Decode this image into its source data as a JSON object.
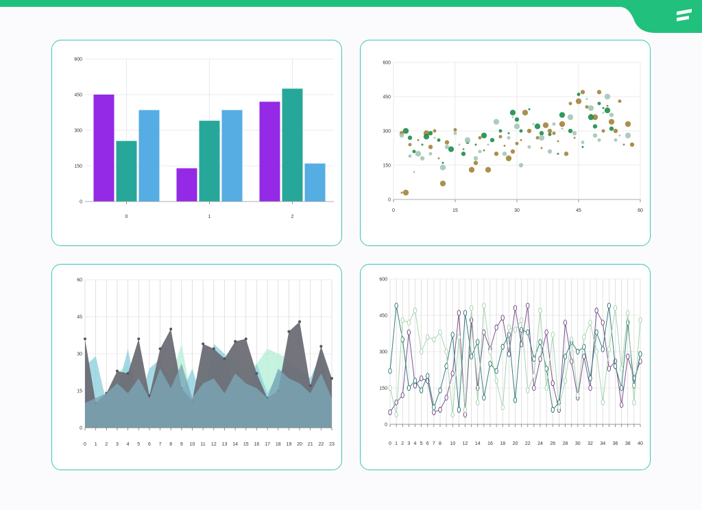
{
  "theme": {
    "accent": "#21c07d",
    "card_border": "#3ec5b0",
    "logo_fill": "#ffffff"
  },
  "header": {
    "logo_icon": "brand-stripes-icon"
  },
  "chart_data": [
    {
      "type": "bar",
      "categories": [
        "0",
        "1",
        "2"
      ],
      "series": [
        {
          "values": [
            450,
            140,
            420
          ],
          "color": "#9429e6"
        },
        {
          "values": [
            255,
            340,
            475
          ],
          "color": "#27a799"
        },
        {
          "values": [
            385,
            385,
            160
          ],
          "color": "#56ade3"
        }
      ],
      "series_layout": "per-category: purple, teal, blue",
      "bar_heights_by_category": [
        [
          450,
          140,
          420
        ],
        [
          255,
          340,
          475
        ],
        [
          385,
          385,
          160
        ]
      ],
      "ylim": [
        0,
        600
      ],
      "yticks": [
        0,
        150,
        300,
        450,
        600
      ],
      "xlabel": "",
      "ylabel": "",
      "title": "",
      "grid": true
    },
    {
      "type": "scatter",
      "xlim": [
        0,
        60
      ],
      "ylim": [
        0,
        600
      ],
      "xticks": [
        0,
        15,
        30,
        45,
        60
      ],
      "yticks": [
        0,
        150,
        300,
        450,
        600
      ],
      "grid": true,
      "series": [
        {
          "color": "#a2843a",
          "points": [
            [
              2,
              30
            ],
            [
              3,
              30
            ],
            [
              2,
              290
            ],
            [
              4,
              240
            ],
            [
              6,
              260
            ],
            [
              8,
              290
            ],
            [
              9,
              230
            ],
            [
              10,
              300
            ],
            [
              11,
              180
            ],
            [
              12,
              70
            ],
            [
              13,
              250
            ],
            [
              15,
              305
            ],
            [
              17,
              220
            ],
            [
              19,
              130
            ],
            [
              20,
              160
            ],
            [
              21,
              270
            ],
            [
              22,
              215
            ],
            [
              23,
              130
            ],
            [
              25,
              200
            ],
            [
              26,
              275
            ],
            [
              27,
              235
            ],
            [
              28,
              180
            ],
            [
              29,
              210
            ],
            [
              30,
              245
            ],
            [
              31,
              260
            ],
            [
              32,
              380
            ],
            [
              33,
              300
            ],
            [
              35,
              270
            ],
            [
              36,
              225
            ],
            [
              37,
              325
            ],
            [
              38,
              300
            ],
            [
              39,
              290
            ],
            [
              40,
              255
            ],
            [
              41,
              330
            ],
            [
              42,
              200
            ],
            [
              43,
              420
            ],
            [
              44,
              270
            ],
            [
              45,
              430
            ],
            [
              46,
              470
            ],
            [
              47,
              405
            ],
            [
              48,
              370
            ],
            [
              49,
              360
            ],
            [
              50,
              470
            ],
            [
              51,
              300
            ],
            [
              52,
              410
            ],
            [
              53,
              340
            ],
            [
              54,
              300
            ],
            [
              55,
              430
            ],
            [
              56,
              240
            ],
            [
              57,
              330
            ],
            [
              58,
              240
            ]
          ]
        },
        {
          "color": "#1e8d4a",
          "points": [
            [
              3,
              300
            ],
            [
              4,
              270
            ],
            [
              5,
              210
            ],
            [
              7,
              240
            ],
            [
              8,
              275
            ],
            [
              9,
              290
            ],
            [
              11,
              260
            ],
            [
              12,
              160
            ],
            [
              14,
              220
            ],
            [
              17,
              200
            ],
            [
              18,
              250
            ],
            [
              20,
              240
            ],
            [
              22,
              280
            ],
            [
              24,
              260
            ],
            [
              26,
              300
            ],
            [
              28,
              290
            ],
            [
              29,
              380
            ],
            [
              30,
              350
            ],
            [
              31,
              300
            ],
            [
              33,
              395
            ],
            [
              35,
              320
            ],
            [
              36,
              290
            ],
            [
              38,
              285
            ],
            [
              40,
              200
            ],
            [
              41,
              370
            ],
            [
              43,
              300
            ],
            [
              45,
              460
            ],
            [
              46,
              230
            ],
            [
              48,
              360
            ],
            [
              49,
              320
            ],
            [
              50,
              420
            ],
            [
              51,
              400
            ],
            [
              52,
              390
            ],
            [
              53,
              310
            ]
          ]
        },
        {
          "color": "#a3c7b6",
          "points": [
            [
              2,
              280
            ],
            [
              4,
              190
            ],
            [
              5,
              120
            ],
            [
              6,
              200
            ],
            [
              7,
              180
            ],
            [
              9,
              200
            ],
            [
              10,
              270
            ],
            [
              12,
              140
            ],
            [
              13,
              230
            ],
            [
              15,
              290
            ],
            [
              16,
              240
            ],
            [
              18,
              260
            ],
            [
              20,
              180
            ],
            [
              21,
              210
            ],
            [
              23,
              240
            ],
            [
              25,
              340
            ],
            [
              27,
              200
            ],
            [
              28,
              270
            ],
            [
              29,
              360
            ],
            [
              30,
              320
            ],
            [
              31,
              150
            ],
            [
              33,
              230
            ],
            [
              34,
              330
            ],
            [
              36,
              270
            ],
            [
              38,
              210
            ],
            [
              39,
              330
            ],
            [
              41,
              310
            ],
            [
              43,
              360
            ],
            [
              44,
              290
            ],
            [
              46,
              250
            ],
            [
              47,
              440
            ],
            [
              48,
              400
            ],
            [
              49,
              280
            ],
            [
              50,
              260
            ],
            [
              51,
              380
            ],
            [
              52,
              450
            ],
            [
              53,
              370
            ],
            [
              54,
              260
            ],
            [
              55,
              280
            ],
            [
              57,
              280
            ]
          ]
        }
      ]
    },
    {
      "type": "area",
      "x": [
        "0",
        "1",
        "2",
        "3",
        "4",
        "5",
        "6",
        "7",
        "8",
        "9",
        "10",
        "11",
        "12",
        "13",
        "14",
        "15",
        "16",
        "17",
        "18",
        "19",
        "20",
        "21",
        "22",
        "23"
      ],
      "ylim": [
        0,
        60
      ],
      "yticks": [
        0,
        15,
        30,
        45,
        60
      ],
      "grid": true,
      "series": [
        {
          "color": "#b8efd8",
          "values": [
            10,
            8,
            12,
            22,
            26,
            12,
            14,
            28,
            20,
            34,
            10,
            32,
            30,
            30,
            28,
            22,
            26,
            32,
            30,
            28,
            20,
            10,
            28,
            15
          ]
        },
        {
          "color": "#8fd1de",
          "values": [
            25,
            29,
            10,
            15,
            32,
            10,
            24,
            28,
            12,
            14,
            24,
            10,
            34,
            30,
            14,
            12,
            26,
            14,
            22,
            26,
            24,
            20,
            30,
            8
          ]
        },
        {
          "color": "#6c6d75",
          "values": [
            36,
            10,
            14,
            23,
            22,
            36,
            13,
            32,
            40,
            16,
            11,
            34,
            32,
            28,
            35,
            36,
            22,
            12,
            15,
            39,
            43,
            17,
            33,
            20
          ]
        },
        {
          "color": "#7aa6b7",
          "values": [
            10,
            12,
            14,
            18,
            14,
            20,
            12,
            24,
            16,
            26,
            12,
            18,
            20,
            14,
            22,
            18,
            16,
            12,
            24,
            20,
            18,
            14,
            22,
            12
          ]
        }
      ]
    },
    {
      "type": "line",
      "x": [
        "0",
        "1",
        "2",
        "3",
        "4",
        "5",
        "6",
        "7",
        "8",
        "9",
        "10",
        "11",
        "12",
        "13",
        "14",
        "15",
        "16",
        "17",
        "18",
        "19",
        "20",
        "21",
        "22",
        "23",
        "24",
        "25",
        "26",
        "27",
        "28",
        "29",
        "30",
        "31",
        "32",
        "33",
        "34",
        "35",
        "36",
        "37",
        "38",
        "39",
        "40"
      ],
      "xtick_labels": [
        "0",
        "1",
        "2",
        "3",
        "4",
        "5",
        "6",
        "7",
        "8",
        "10",
        "12",
        "14",
        "16",
        "18",
        "20",
        "22",
        "24",
        "26",
        "28",
        "30",
        "32",
        "34",
        "36",
        "38",
        "40"
      ],
      "ylim": [
        0,
        600
      ],
      "yticks": [
        0,
        150,
        300,
        450,
        600
      ],
      "grid": true,
      "marker": "hollow-oval",
      "series": [
        {
          "color": "#6a3f7e",
          "values": [
            50,
            90,
            120,
            380,
            160,
            190,
            180,
            50,
            60,
            110,
            210,
            460,
            40,
            430,
            150,
            380,
            310,
            400,
            440,
            290,
            480,
            330,
            490,
            150,
            270,
            380,
            170,
            60,
            420,
            260,
            110,
            280,
            150,
            470,
            420,
            230,
            260,
            80,
            280,
            190,
            260
          ]
        },
        {
          "color": "#1e6f6a",
          "values": [
            220,
            490,
            350,
            150,
            180,
            140,
            200,
            70,
            140,
            240,
            370,
            60,
            460,
            280,
            340,
            110,
            250,
            220,
            320,
            370,
            100,
            390,
            380,
            270,
            340,
            230,
            60,
            90,
            280,
            340,
            300,
            320,
            190,
            380,
            310,
            490,
            240,
            150,
            420,
            160,
            290
          ]
        },
        {
          "color": "#9fcfa6",
          "values": [
            150,
            40,
            430,
            420,
            470,
            300,
            360,
            350,
            380,
            300,
            40,
            360,
            60,
            480,
            90,
            490,
            300,
            180,
            70,
            400,
            390,
            430,
            140,
            200,
            470,
            150,
            370,
            70,
            180,
            350,
            120,
            360,
            420,
            300,
            90,
            310,
            480,
            230,
            460,
            90,
            430
          ]
        }
      ]
    }
  ]
}
